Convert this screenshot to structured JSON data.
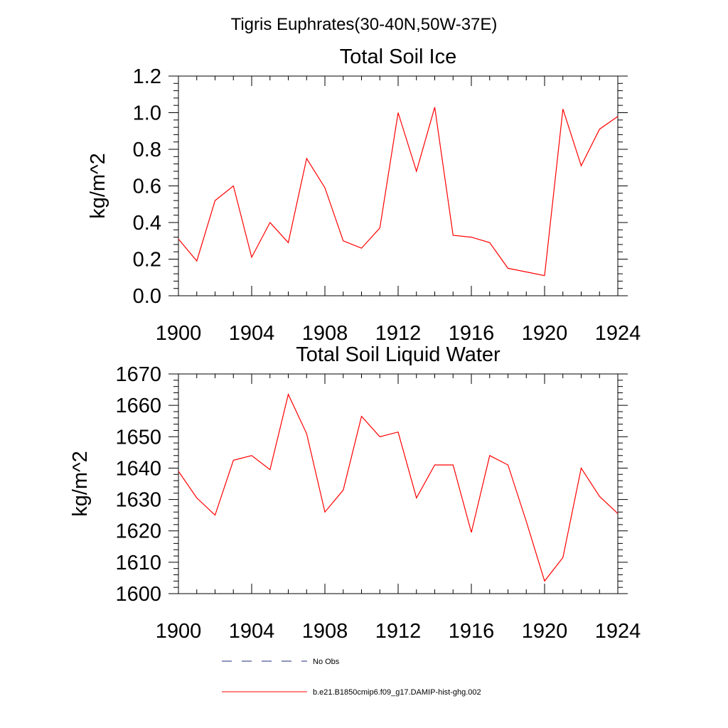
{
  "suptitle": "Tigris Euphrates(30-40N,50W-37E)",
  "legend": {
    "entries": [
      {
        "label": "No Obs",
        "color": "#1f2a7a",
        "dash": "dashed"
      },
      {
        "label": "b.e21.B1850cmip6.f09_g17.DAMIP-hist-ghg.002",
        "color": "#ff0000",
        "dash": "solid"
      }
    ]
  },
  "chart_data": [
    {
      "type": "line",
      "title": "Total Soil Ice",
      "ylabel": "kg/m^2",
      "xlabel": "",
      "xlim": [
        1900,
        1924
      ],
      "ylim": [
        0,
        1.2
      ],
      "xticks": [
        1900,
        1904,
        1908,
        1912,
        1916,
        1920,
        1924
      ],
      "yticks": [
        0.0,
        0.2,
        0.4,
        0.6,
        0.8,
        1.0,
        1.2
      ],
      "ytick_decimals": 1,
      "grid": false,
      "x": [
        1900,
        1901,
        1902,
        1903,
        1904,
        1905,
        1906,
        1907,
        1908,
        1909,
        1910,
        1911,
        1912,
        1913,
        1914,
        1915,
        1916,
        1917,
        1918,
        1919,
        1920,
        1921,
        1922,
        1923,
        1924
      ],
      "series": [
        {
          "color": "#ff0000",
          "values": [
            0.31,
            0.19,
            0.52,
            0.6,
            0.21,
            0.4,
            0.29,
            0.75,
            0.59,
            0.3,
            0.26,
            0.37,
            1.0,
            0.68,
            1.03,
            0.33,
            0.32,
            0.29,
            0.15,
            0.13,
            0.11,
            1.02,
            0.71,
            0.91,
            0.98
          ]
        }
      ]
    },
    {
      "type": "line",
      "title": "Total Soil Liquid Water",
      "ylabel": "kg/m^2",
      "xlabel": "",
      "xlim": [
        1900,
        1924
      ],
      "ylim": [
        1600,
        1670
      ],
      "xticks": [
        1900,
        1904,
        1908,
        1912,
        1916,
        1920,
        1924
      ],
      "yticks": [
        1600,
        1610,
        1620,
        1630,
        1640,
        1650,
        1660,
        1670
      ],
      "ytick_decimals": 0,
      "grid": false,
      "x": [
        1900,
        1901,
        1902,
        1903,
        1904,
        1905,
        1906,
        1907,
        1908,
        1909,
        1910,
        1911,
        1912,
        1913,
        1914,
        1915,
        1916,
        1917,
        1918,
        1919,
        1920,
        1921,
        1922,
        1923,
        1924
      ],
      "series": [
        {
          "color": "#ff0000",
          "values": [
            1639,
            1630.5,
            1625,
            1642.5,
            1644,
            1639.5,
            1663.5,
            1651,
            1626,
            1633,
            1656.5,
            1650,
            1651.5,
            1630.5,
            1641,
            1641,
            1619.5,
            1644,
            1641,
            1623,
            1604,
            1611.5,
            1640,
            1631,
            1625.5
          ]
        }
      ]
    }
  ]
}
